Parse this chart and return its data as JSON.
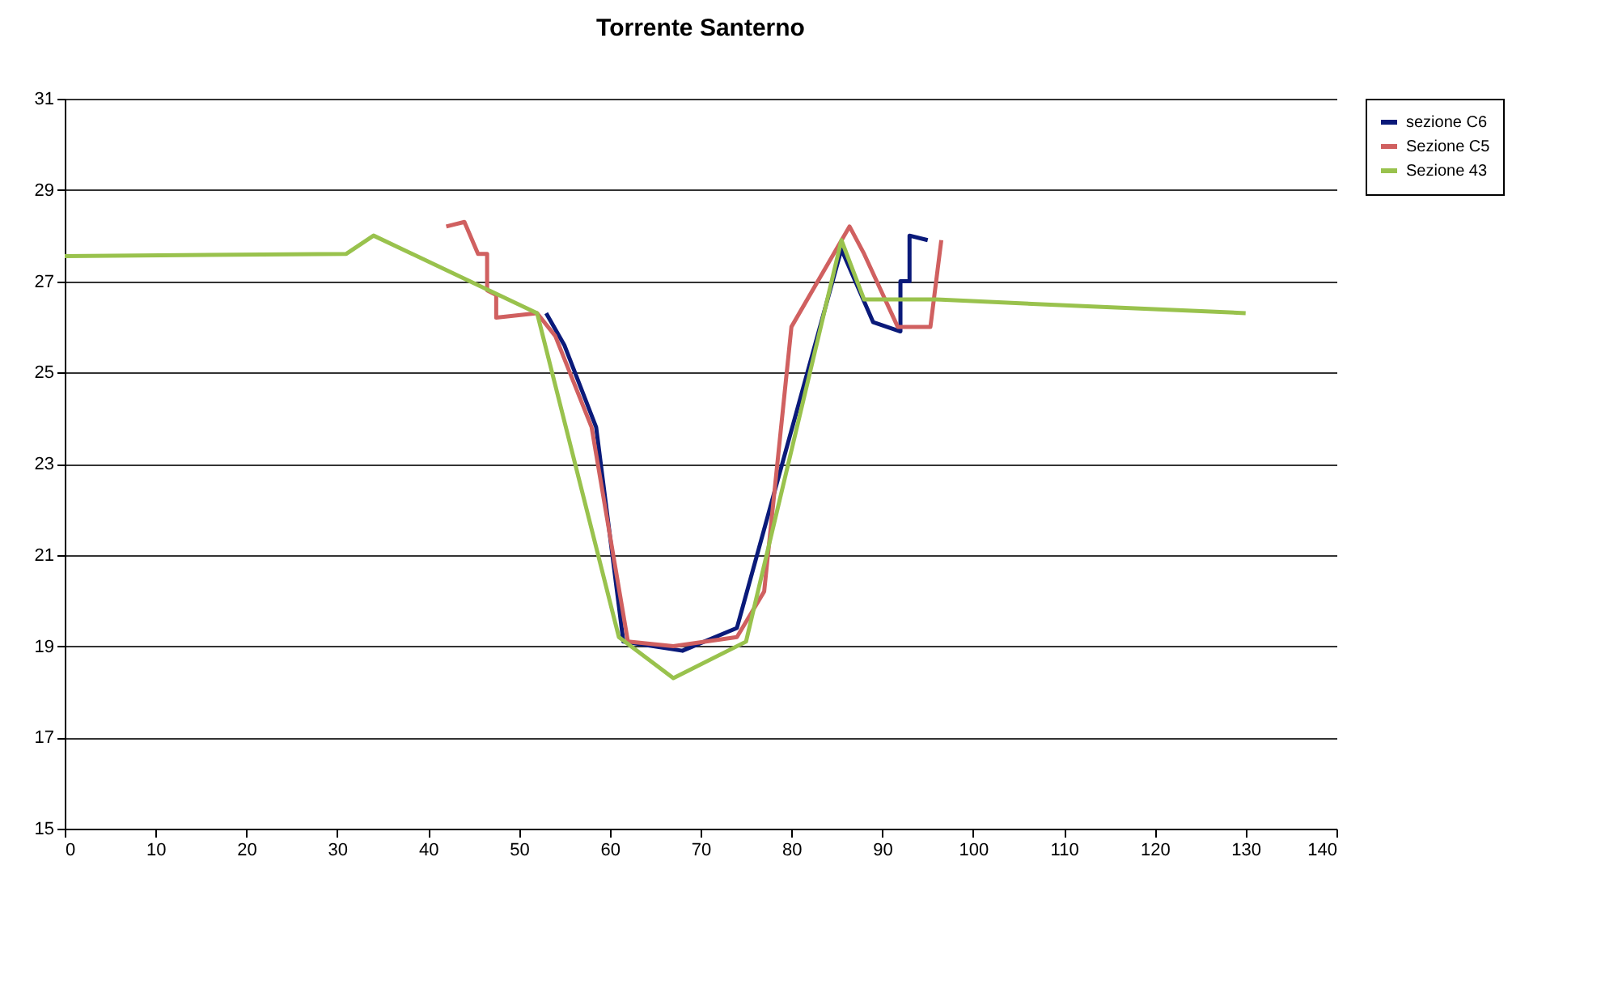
{
  "chart_data": {
    "type": "line",
    "title": "Torrente Santerno",
    "xlim": [
      0,
      140
    ],
    "xticks": [
      0,
      10,
      20,
      30,
      40,
      50,
      60,
      70,
      80,
      90,
      100,
      110,
      120,
      130,
      140
    ],
    "ylim": [
      15,
      31
    ],
    "yticks": [
      15,
      17,
      19,
      21,
      23,
      25,
      27,
      29,
      31
    ],
    "grid": "y",
    "legend": "right",
    "marker": "none",
    "line_style": "solid",
    "series": [
      {
        "name": "sezione C6",
        "color": "#0a1a7a",
        "x": [
          53,
          55,
          58.5,
          61.5,
          68,
          74,
          85.5,
          89,
          92,
          92,
          93,
          93,
          95
        ],
        "values": [
          26.3,
          25.6,
          23.8,
          19.1,
          18.9,
          19.4,
          27.7,
          26.1,
          25.9,
          27.0,
          27.0,
          28.0,
          27.9
        ]
      },
      {
        "name": "Sezione C5",
        "color": "#d06060",
        "x": [
          42,
          44,
          45.5,
          46.5,
          46.5,
          47.5,
          47.5,
          52,
          54,
          58,
          62,
          67,
          74,
          77,
          80,
          86.4,
          88,
          91.7,
          95.3,
          96.5
        ],
        "values": [
          28.2,
          28.3,
          27.6,
          27.6,
          26.8,
          26.7,
          26.2,
          26.3,
          25.8,
          23.8,
          19.1,
          19.0,
          19.2,
          20.2,
          26.0,
          28.2,
          27.6,
          26.0,
          26.0,
          27.9
        ]
      },
      {
        "name": "Sezione 43",
        "color": "#99c24d",
        "x": [
          0,
          31,
          34,
          52,
          61,
          67,
          75,
          85.5,
          88,
          96,
          112.6,
          130
        ],
        "values": [
          27.55,
          27.6,
          28.0,
          26.3,
          19.2,
          18.3,
          19.1,
          27.9,
          26.6,
          26.6,
          26.45,
          26.3
        ]
      }
    ]
  }
}
